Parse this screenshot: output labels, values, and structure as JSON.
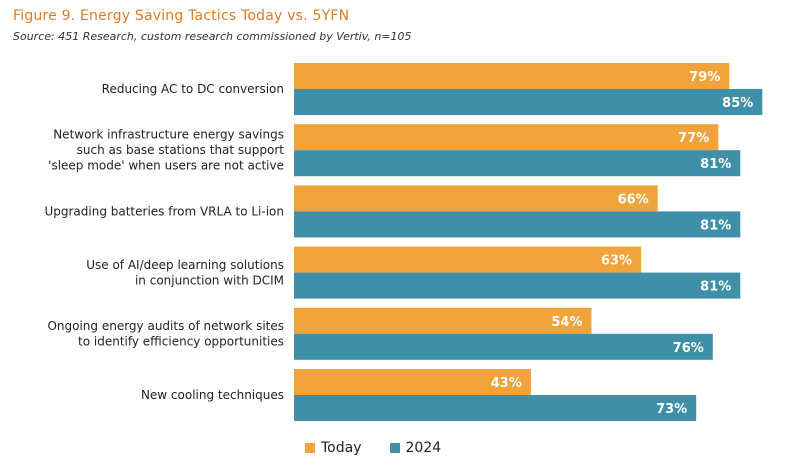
{
  "chart_data": {
    "type": "bar",
    "orientation": "horizontal",
    "title": "Figure 9. Energy Saving Tactics Today vs. 5YFN",
    "subtitle": "Source: 451 Research, custom research commissioned by Vertiv, n=105",
    "categories": [
      [
        "Reducing AC to DC conversion"
      ],
      [
        "Network infrastructure energy savings",
        "such as base stations that support",
        "'sleep mode' when users are not active"
      ],
      [
        "Upgrading batteries from VRLA to Li-ion"
      ],
      [
        "Use of AI/deep learning solutions",
        "in conjunction with DCIM"
      ],
      [
        "Ongoing energy audits of network sites",
        "to identify efficiency opportunities"
      ],
      [
        "New cooling techniques"
      ]
    ],
    "series": [
      {
        "name": "Today",
        "color": "#f0a23b",
        "values": [
          79,
          77,
          66,
          63,
          54,
          43
        ]
      },
      {
        "name": "2024",
        "color": "#3f8fa8",
        "values": [
          85,
          81,
          81,
          81,
          76,
          73
        ]
      }
    ],
    "value_suffix": "%",
    "xlim": [
      0,
      100
    ],
    "grid": false,
    "legend_position": "bottom"
  }
}
